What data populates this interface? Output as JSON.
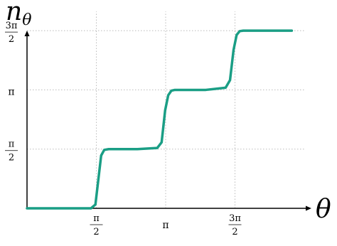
{
  "chart_data": {
    "type": "line",
    "title": "",
    "xlabel": {
      "main": "θ",
      "sub": ""
    },
    "ylabel": {
      "main": "n",
      "sub": "θ"
    },
    "xlim": [
      0,
      6.2832
    ],
    "ylim": [
      0,
      5.3
    ],
    "grid": true,
    "line_color": "#1a9e85",
    "grid_color": "#bbbbbb",
    "x_ticks": [
      {
        "value": 1.5708,
        "num": "π",
        "den": "2"
      },
      {
        "value": 3.1416,
        "text": "π"
      },
      {
        "value": 4.7124,
        "num": "3π",
        "den": "2"
      }
    ],
    "y_ticks": [
      {
        "value": 1.5708,
        "num": "π",
        "den": "2"
      },
      {
        "value": 3.1416,
        "text": "π"
      },
      {
        "value": 4.7124,
        "num": "3π",
        "den": "2"
      }
    ],
    "series": [
      {
        "name": "",
        "x": [
          0,
          1.2,
          1.45,
          1.55,
          1.62,
          1.68,
          1.75,
          1.85,
          2.5,
          2.95,
          3.05,
          3.13,
          3.2,
          3.27,
          3.35,
          4.05,
          4.5,
          4.6,
          4.68,
          4.75,
          4.82,
          4.9,
          6.0
        ],
        "y": [
          0,
          0,
          0,
          0.1,
          0.8,
          1.4,
          1.55,
          1.5708,
          1.5708,
          1.6,
          1.75,
          2.6,
          3.0,
          3.12,
          3.1416,
          3.1416,
          3.2,
          3.4,
          4.2,
          4.6,
          4.7,
          4.7124,
          4.7124
        ]
      }
    ]
  }
}
